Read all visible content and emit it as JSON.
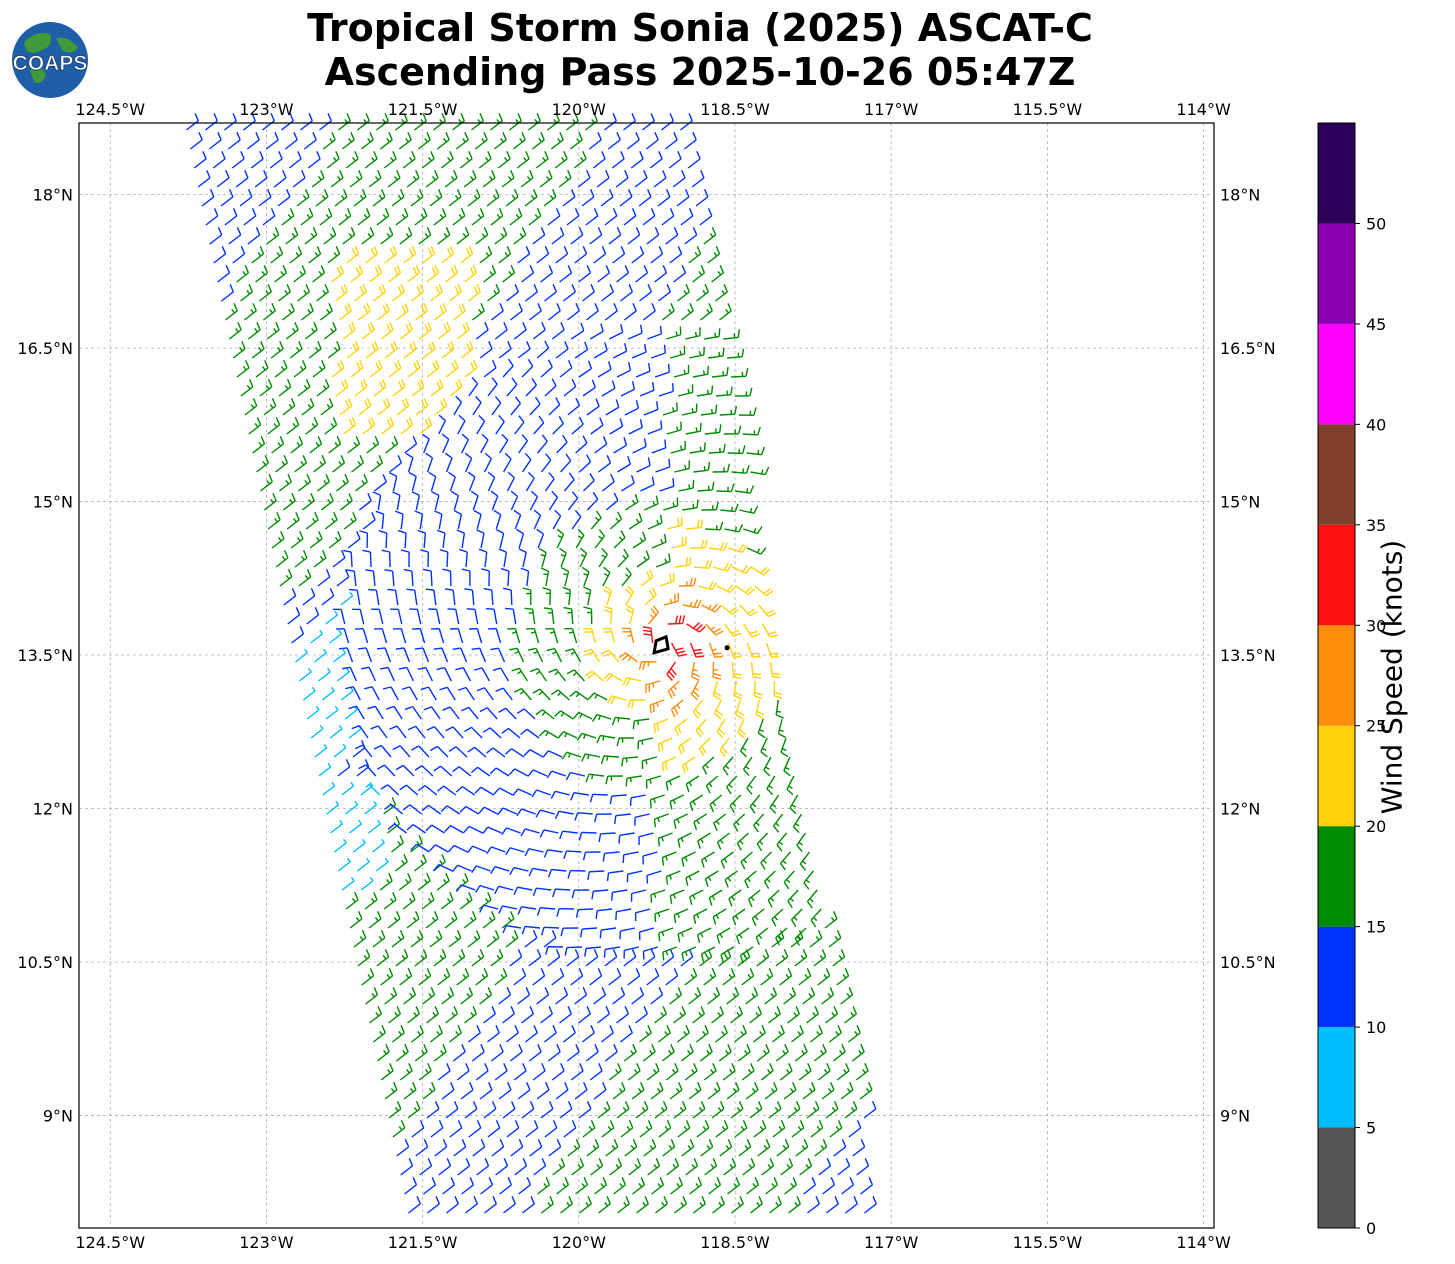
{
  "title": {
    "line1": "Tropical Storm Sonia (2025) ASCAT-C",
    "line2": "Ascending Pass 2025-10-26 05:47Z"
  },
  "logo": {
    "text": "COAPS"
  },
  "map": {
    "lon_range": [
      -124.8,
      -113.9
    ],
    "lat_range": [
      7.9,
      18.7
    ],
    "lon_ticks": [
      -124.5,
      -123,
      -121.5,
      -120,
      -118.5,
      -117,
      -115.5,
      -114
    ],
    "lon_tick_labels": [
      "124.5°W",
      "123°W",
      "121.5°W",
      "120°W",
      "118.5°W",
      "117°W",
      "115.5°W",
      "114°W"
    ],
    "lat_ticks": [
      18,
      16.5,
      15,
      13.5,
      12,
      10.5,
      9
    ],
    "lat_tick_labels": [
      "18°N",
      "16.5°N",
      "15°N",
      "13.5°N",
      "12°N",
      "10.5°N",
      "9°N"
    ],
    "gridlines": true,
    "storm_center": {
      "lon": -119.2,
      "lat": 13.6
    }
  },
  "colorbar": {
    "label": "Wind Speed (knots)",
    "tick_labels": [
      "0",
      "5",
      "10",
      "15",
      "20",
      "25",
      "30",
      "35",
      "40",
      "45",
      "50"
    ],
    "bins": [
      {
        "range": [
          0,
          5
        ],
        "color": "#555555"
      },
      {
        "range": [
          5,
          10
        ],
        "color": "#00bfff"
      },
      {
        "range": [
          10,
          15
        ],
        "color": "#0033ff"
      },
      {
        "range": [
          15,
          20
        ],
        "color": "#008c00"
      },
      {
        "range": [
          20,
          25
        ],
        "color": "#ffd20a"
      },
      {
        "range": [
          25,
          30
        ],
        "color": "#ff8c0a"
      },
      {
        "range": [
          30,
          35
        ],
        "color": "#ff1010"
      },
      {
        "range": [
          35,
          40
        ],
        "color": "#7f3f2a"
      },
      {
        "range": [
          40,
          45
        ],
        "color": "#ff00ff"
      },
      {
        "range": [
          45,
          50
        ],
        "color": "#8800b0"
      },
      {
        "range": [
          50,
          55
        ],
        "color": "#2a0058"
      }
    ]
  }
}
